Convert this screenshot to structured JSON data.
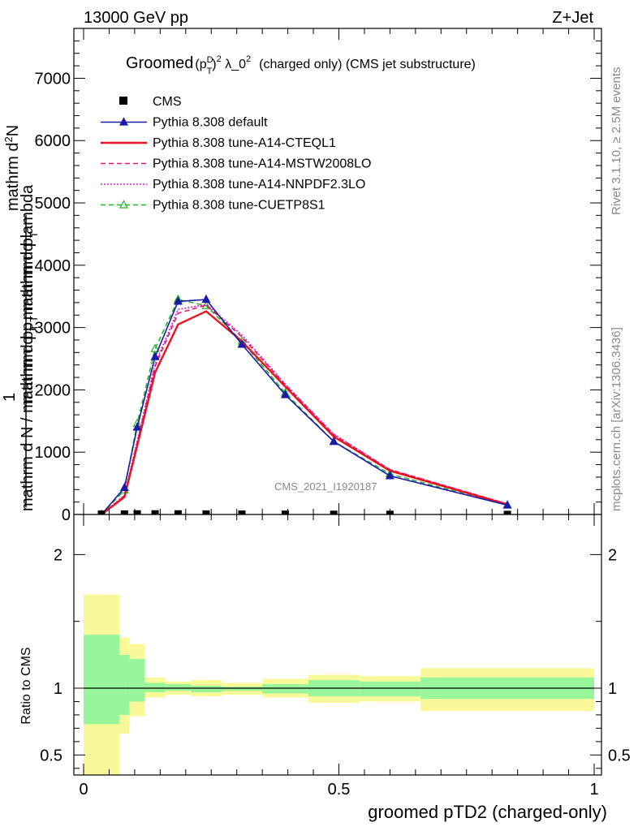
{
  "header": {
    "left": "13000 GeV pp",
    "right": "Z+Jet"
  },
  "side_text": {
    "rivet": "Rivet 3.1.10, ≥ 2.5M events",
    "mcplots": "mcplots.cern.ch [arXiv:1306.3436]"
  },
  "chart_data": [
    {
      "type": "line",
      "title_main": "Groomed",
      "title_formula_p": "(p",
      "title_formula_sup_d": "D",
      "title_formula_sub_t": "T",
      "title_formula_close": ")",
      "title_formula_sup2": "2",
      "title_formula_lambda": " λ_0",
      "title_formula_sup2b": "2",
      "title_rest": "(charged only) (CMS jet substructure)",
      "ylabel_top": "mathrm d",
      "ylabel_top_sup": "2",
      "ylabel_top_n": "N",
      "ylabel_top_rest": "mathrm d p",
      "ylabel_top_sub": "T",
      "ylabel_top_tail": " mathrm d lambda",
      "ylabel_one": "1",
      "ylabel_bottom": "mathrm d N / mathrm d p",
      "ylabel_bottom_sub": "T",
      "ylabel_bottom_tail": " mathrm d p",
      "ylabel_bottom_sub2": "T",
      "watermark": "CMS_2021_I1920187",
      "xlim": [
        0,
        1
      ],
      "ylim": [
        0,
        7800
      ],
      "y_ticks": [
        0,
        1000,
        2000,
        3000,
        4000,
        5000,
        6000,
        7000
      ],
      "y_tick_labels": [
        "0",
        "1000",
        "2000",
        "3000",
        "4000",
        "5000",
        "6000",
        "7000"
      ],
      "grid": false,
      "legend_position": "top-left",
      "cms": {
        "name": "CMS",
        "x": [
          0.035,
          0.08,
          0.105,
          0.14,
          0.185,
          0.24,
          0.31,
          0.395,
          0.49,
          0.6,
          0.83
        ],
        "y": [
          5,
          8,
          10,
          10,
          10,
          8,
          6,
          4,
          3,
          2,
          1
        ]
      },
      "series": [
        {
          "name": "Pythia 8.308 default",
          "color": "#1a1aa8",
          "dash": "solid",
          "marker": "triangle-filled",
          "x": [
            0.035,
            0.08,
            0.105,
            0.14,
            0.185,
            0.24,
            0.31,
            0.395,
            0.49,
            0.6,
            0.83
          ],
          "y": [
            0,
            430,
            1400,
            2530,
            3420,
            3450,
            2730,
            1920,
            1170,
            620,
            150
          ]
        },
        {
          "name": "Pythia 8.308 tune-A14-CTEQL1",
          "color": "#e8141e",
          "dash": "solid",
          "marker": "none",
          "x": [
            0.035,
            0.08,
            0.105,
            0.14,
            0.185,
            0.24,
            0.31,
            0.395,
            0.49,
            0.6,
            0.83
          ],
          "y": [
            0,
            280,
            1100,
            2280,
            3050,
            3260,
            2780,
            2050,
            1250,
            700,
            160
          ]
        },
        {
          "name": "Pythia 8.308 tune-A14-MSTW2008LO",
          "color": "#e8146e",
          "dash": "dashed",
          "marker": "none",
          "x": [
            0.035,
            0.08,
            0.105,
            0.14,
            0.185,
            0.24,
            0.31,
            0.395,
            0.49,
            0.6,
            0.83
          ],
          "y": [
            0,
            300,
            1150,
            2380,
            3230,
            3360,
            2850,
            2080,
            1280,
            720,
            170
          ]
        },
        {
          "name": "Pythia 8.308 tune-A14-NNPDF2.3LO",
          "color": "#e014e0",
          "dash": "dotted",
          "marker": "none",
          "x": [
            0.035,
            0.08,
            0.105,
            0.14,
            0.185,
            0.24,
            0.31,
            0.395,
            0.49,
            0.6,
            0.83
          ],
          "y": [
            0,
            310,
            1180,
            2420,
            3290,
            3370,
            2880,
            2090,
            1290,
            720,
            170
          ]
        },
        {
          "name": "Pythia 8.308 tune-CUETP8S1",
          "color": "#22b422",
          "dash": "dashed",
          "marker": "triangle-open",
          "x": [
            0.035,
            0.08,
            0.105,
            0.14,
            0.185,
            0.24,
            0.31,
            0.395,
            0.49,
            0.6,
            0.83
          ],
          "y": [
            0,
            390,
            1460,
            2660,
            3450,
            3350,
            2780,
            1950,
            1170,
            650,
            150
          ]
        }
      ]
    },
    {
      "type": "bar",
      "ylabel": "Ratio to CMS",
      "xlabel": "groomed pTD2 (charged-only)",
      "xlim": [
        0,
        1
      ],
      "ylim": [
        0.35,
        2.3
      ],
      "x_ticks": [
        0,
        0.5,
        1
      ],
      "x_tick_labels": [
        "0",
        "0.5",
        "1"
      ],
      "y_ticks": [
        0.5,
        1,
        2
      ],
      "y_tick_labels": [
        "0.5",
        "1",
        "2"
      ],
      "reference": 1,
      "bins": [
        {
          "x0": 0.0,
          "x1": 0.07,
          "inner_low": 0.73,
          "inner_high": 1.4,
          "outer_low": 0.0,
          "outer_high": 1.7
        },
        {
          "x0": 0.07,
          "x1": 0.09,
          "inner_low": 0.8,
          "inner_high": 1.25,
          "outer_low": 0.66,
          "outer_high": 1.38
        },
        {
          "x0": 0.09,
          "x1": 0.12,
          "inner_low": 0.9,
          "inner_high": 1.22,
          "outer_low": 0.79,
          "outer_high": 1.33
        },
        {
          "x0": 0.12,
          "x1": 0.16,
          "inner_low": 0.97,
          "inner_high": 1.04,
          "outer_low": 0.93,
          "outer_high": 1.08
        },
        {
          "x0": 0.16,
          "x1": 0.21,
          "inner_low": 0.98,
          "inner_high": 1.03,
          "outer_low": 0.95,
          "outer_high": 1.05
        },
        {
          "x0": 0.21,
          "x1": 0.27,
          "inner_low": 0.97,
          "inner_high": 1.02,
          "outer_low": 0.94,
          "outer_high": 1.06
        },
        {
          "x0": 0.27,
          "x1": 0.35,
          "inner_low": 0.98,
          "inner_high": 1.01,
          "outer_low": 0.95,
          "outer_high": 1.04
        },
        {
          "x0": 0.35,
          "x1": 0.44,
          "inner_low": 0.96,
          "inner_high": 1.03,
          "outer_low": 0.93,
          "outer_high": 1.07
        },
        {
          "x0": 0.44,
          "x1": 0.54,
          "inner_low": 0.94,
          "inner_high": 1.06,
          "outer_low": 0.89,
          "outer_high": 1.1
        },
        {
          "x0": 0.54,
          "x1": 0.66,
          "inner_low": 0.94,
          "inner_high": 1.05,
          "outer_low": 0.9,
          "outer_high": 1.09
        },
        {
          "x0": 0.66,
          "x1": 1.0,
          "inner_low": 0.92,
          "inner_high": 1.08,
          "outer_low": 0.83,
          "outer_high": 1.15
        }
      ],
      "inner_color": "#99f599",
      "outer_color": "#f9f999"
    }
  ]
}
